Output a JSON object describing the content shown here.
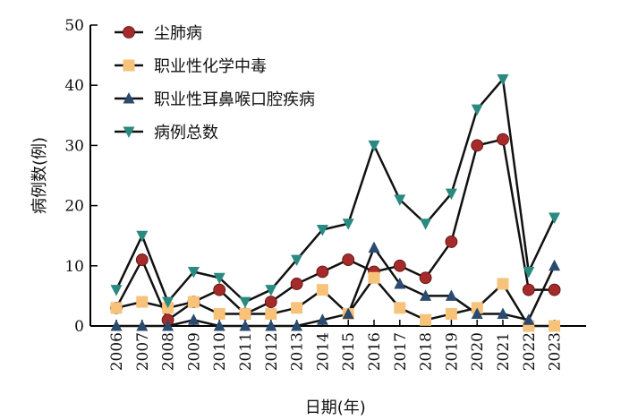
{
  "chart_data": {
    "type": "line",
    "xlabel": "日期(年)",
    "ylabel": "病例数(例)",
    "ylim": [
      0,
      50
    ],
    "yticks": [
      0,
      10,
      20,
      30,
      40,
      50
    ],
    "grid": false,
    "legend_position": "top-left",
    "categories": [
      "2006",
      "2007",
      "2008",
      "2009",
      "2010",
      "2011",
      "2012",
      "2013",
      "2014",
      "2015",
      "2016",
      "2017",
      "2018",
      "2019",
      "2020",
      "2021",
      "2022",
      "2023"
    ],
    "series": [
      {
        "name": "尘肺病",
        "marker": "circle",
        "color": "#a52a2a",
        "values": [
          3,
          11,
          1,
          4,
          6,
          2,
          4,
          7,
          9,
          11,
          9,
          10,
          8,
          14,
          30,
          31,
          6,
          6
        ]
      },
      {
        "name": "职业性化学中毒",
        "marker": "square",
        "color": "#f7c27a",
        "values": [
          3,
          4,
          3,
          4,
          2,
          2,
          2,
          3,
          6,
          2,
          8,
          3,
          1,
          2,
          3,
          7,
          0,
          0
        ]
      },
      {
        "name": "职业性耳鼻喉口腔疾病",
        "marker": "triangle-up",
        "color": "#2a4a6e",
        "values": [
          0,
          0,
          0,
          1,
          0,
          0,
          0,
          0,
          1,
          2,
          13,
          7,
          5,
          5,
          2,
          2,
          1,
          10
        ]
      },
      {
        "name": "病例总数",
        "marker": "triangle-down",
        "color": "#2a8a80",
        "values": [
          6,
          15,
          4,
          9,
          8,
          4,
          6,
          11,
          16,
          17,
          30,
          21,
          17,
          22,
          36,
          41,
          9,
          18
        ]
      }
    ]
  }
}
